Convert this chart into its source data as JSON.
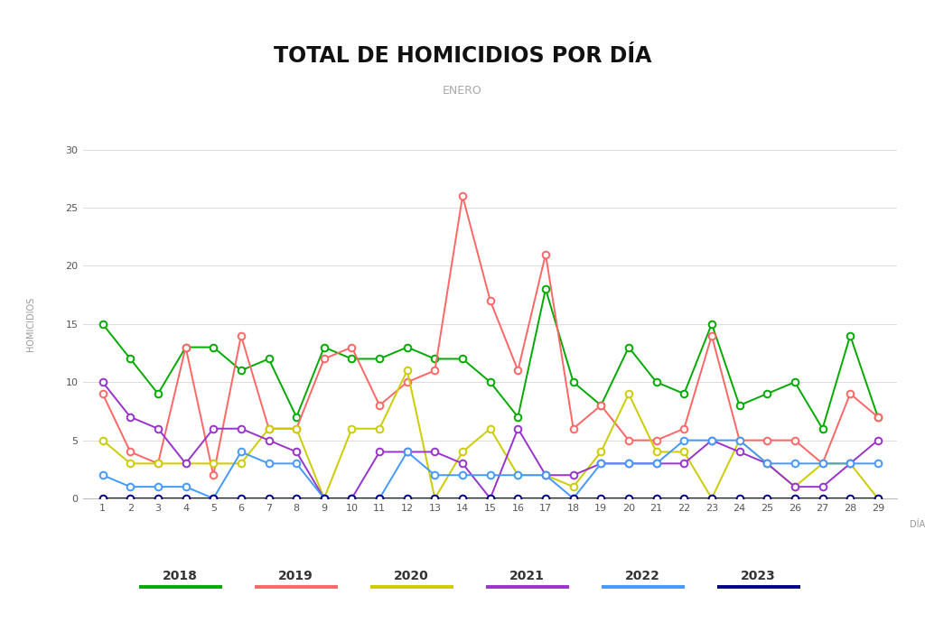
{
  "title": "TOTAL DE HOMICIDIOS POR DÍA",
  "subtitle": "ENERO",
  "xlabel": "DÍA",
  "ylabel": "HOMICIDIOS",
  "days": [
    1,
    2,
    3,
    4,
    5,
    6,
    7,
    8,
    9,
    10,
    11,
    12,
    13,
    14,
    15,
    16,
    17,
    18,
    19,
    20,
    21,
    22,
    23,
    24,
    25,
    26,
    27,
    28,
    29
  ],
  "series": [
    {
      "year": "2018",
      "color": "#00AA00",
      "values": [
        15,
        12,
        9,
        13,
        13,
        11,
        12,
        7,
        13,
        12,
        12,
        13,
        12,
        12,
        10,
        7,
        18,
        10,
        8,
        13,
        10,
        9,
        15,
        8,
        9,
        10,
        6,
        14,
        7
      ]
    },
    {
      "year": "2019",
      "color": "#FF6666",
      "values": [
        9,
        4,
        3,
        13,
        2,
        14,
        6,
        6,
        12,
        13,
        8,
        10,
        11,
        26,
        17,
        11,
        21,
        6,
        8,
        5,
        5,
        6,
        14,
        5,
        5,
        5,
        3,
        9,
        7
      ]
    },
    {
      "year": "2020",
      "color": "#CCCC00",
      "values": [
        5,
        3,
        3,
        3,
        3,
        3,
        6,
        6,
        0,
        6,
        6,
        11,
        0,
        4,
        6,
        2,
        2,
        1,
        4,
        9,
        4,
        4,
        0,
        5,
        3,
        1,
        3,
        3,
        0
      ]
    },
    {
      "year": "2021",
      "color": "#9933CC",
      "values": [
        10,
        7,
        6,
        3,
        6,
        6,
        5,
        4,
        0,
        0,
        4,
        4,
        4,
        3,
        0,
        6,
        2,
        2,
        3,
        3,
        3,
        3,
        5,
        4,
        3,
        1,
        1,
        3,
        5
      ]
    },
    {
      "year": "2022",
      "color": "#4499FF",
      "values": [
        2,
        1,
        1,
        1,
        0,
        4,
        3,
        3,
        0,
        0,
        0,
        4,
        2,
        2,
        2,
        2,
        2,
        0,
        3,
        3,
        3,
        5,
        5,
        5,
        3,
        3,
        3,
        3,
        3
      ]
    },
    {
      "year": "2023",
      "color": "#000088",
      "values": [
        0,
        0,
        0,
        0,
        0,
        0,
        0,
        0,
        0,
        0,
        0,
        0,
        0,
        0,
        0,
        0,
        0,
        0,
        0,
        0,
        0,
        0,
        0,
        0,
        0,
        0,
        0,
        0,
        0
      ]
    }
  ],
  "ylim": [
    0,
    30
  ],
  "yticks": [
    0,
    5,
    10,
    15,
    20,
    25,
    30
  ],
  "bg_color": "#FFFFFF",
  "grid_color": "#DDDDDD",
  "title_fontsize": 17,
  "subtitle_fontsize": 9,
  "tick_fontsize": 8
}
